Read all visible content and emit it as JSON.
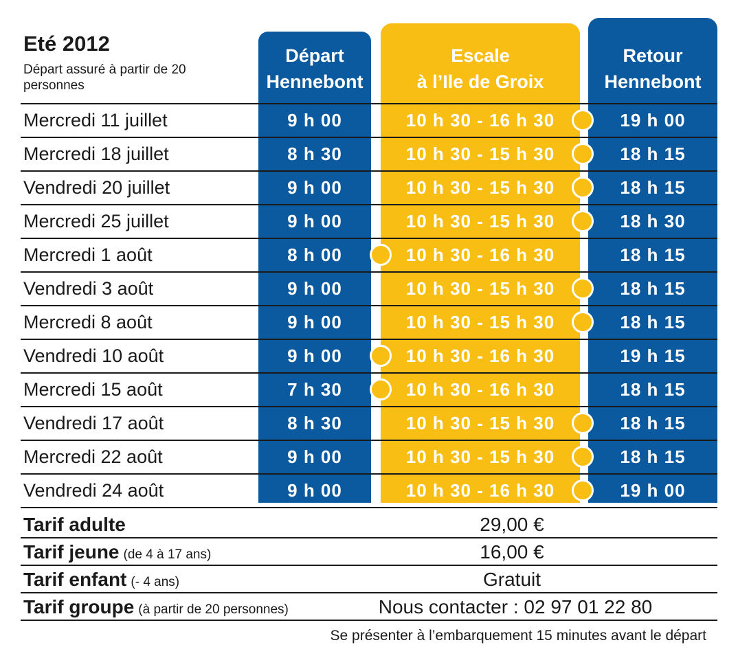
{
  "season": {
    "title": "Eté 2012",
    "note": "Départ assuré à partir de 20 personnes"
  },
  "columns": {
    "depart": "Départ\nHennebont",
    "escale": "Escale\nà l’Ile de Groix",
    "retour": "Retour\nHennebont"
  },
  "colors": {
    "blue": "#0b5aa0",
    "yellow": "#f9be14",
    "text": "#1a1a1a"
  },
  "schedule": [
    {
      "date": "Mercredi 11 juillet",
      "depart": "9 h 00",
      "escale": "10 h 30 - 16 h 30",
      "retour": "19 h 00",
      "marker": "right"
    },
    {
      "date": "Mercredi 18 juillet",
      "depart": "8 h 30",
      "escale": "10 h 30 - 15 h 30",
      "retour": "18 h 15",
      "marker": "right"
    },
    {
      "date": "Vendredi 20 juillet",
      "depart": "9 h 00",
      "escale": "10 h 30 - 15 h 30",
      "retour": "18 h 15",
      "marker": "right"
    },
    {
      "date": "Mercredi 25 juillet",
      "depart": "9 h 00",
      "escale": "10 h 30 - 15 h 30",
      "retour": "18 h 30",
      "marker": "right"
    },
    {
      "date": "Mercredi 1 août",
      "depart": "8 h 00",
      "escale": "10 h 30 - 16 h 30",
      "retour": "18 h 15",
      "marker": "left"
    },
    {
      "date": "Vendredi 3 août",
      "depart": "9 h 00",
      "escale": "10 h 30 - 15 h 30",
      "retour": "18 h 15",
      "marker": "right"
    },
    {
      "date": "Mercredi 8 août",
      "depart": "9 h 00",
      "escale": "10 h 30 - 15 h 30",
      "retour": "18 h 15",
      "marker": "right"
    },
    {
      "date": "Vendredi 10 août",
      "depart": "9 h 00",
      "escale": "10 h 30 - 16 h 30",
      "retour": "19 h 15",
      "marker": "left"
    },
    {
      "date": "Mercredi 15 août",
      "depart": "7 h 30",
      "escale": "10 h 30 - 16 h 30",
      "retour": "18 h 15",
      "marker": "left"
    },
    {
      "date": "Vendredi 17 août",
      "depart": "8 h 30",
      "escale": "10 h 30 - 15 h 30",
      "retour": "18 h 15",
      "marker": "right"
    },
    {
      "date": "Mercredi 22 août",
      "depart": "9 h 00",
      "escale": "10 h 30 - 15 h 30",
      "retour": "18 h 15",
      "marker": "right"
    },
    {
      "date": "Vendredi 24 août",
      "depart": "9 h 00",
      "escale": "10 h 30 - 16 h 30",
      "retour": "19 h 00",
      "marker": "right"
    }
  ],
  "tariffs": [
    {
      "name": "Tarif adulte",
      "note": "",
      "price": "29,00 €"
    },
    {
      "name": "Tarif jeune",
      "note": "(de 4 à 17 ans)",
      "price": "16,00 €"
    },
    {
      "name": "Tarif enfant",
      "note": "(- 4 ans)",
      "price": "Gratuit"
    },
    {
      "name": "Tarif groupe",
      "note": "(à partir de 20 personnes)",
      "price": "Nous contacter : 02 97 01 22 80"
    }
  ],
  "footer": "Se présenter à l’embarquement 15 minutes avant le départ"
}
